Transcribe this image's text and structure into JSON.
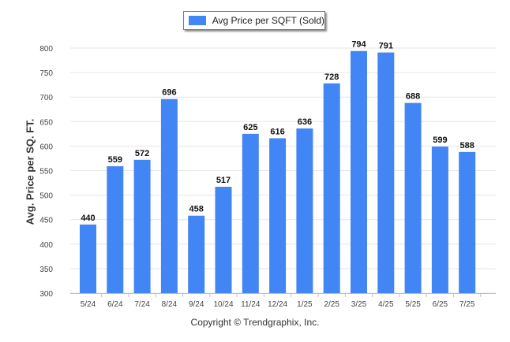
{
  "chart_data": {
    "type": "bar",
    "categories": [
      "5/24",
      "6/24",
      "7/24",
      "8/24",
      "9/24",
      "10/24",
      "11/24",
      "12/24",
      "1/25",
      "2/25",
      "3/25",
      "4/25",
      "5/25",
      "6/25",
      "7/25"
    ],
    "series": [
      {
        "name": "Avg Price per SQFT (Sold)",
        "values": [
          440,
          559,
          572,
          696,
          458,
          517,
          625,
          616,
          636,
          728,
          794,
          791,
          688,
          599,
          588
        ]
      }
    ],
    "data_labels": [
      "440",
      "559",
      "572",
      "696",
      "458",
      "517",
      "625",
      "616",
      "636",
      "728",
      "794",
      "791",
      "688",
      "599",
      "588"
    ],
    "title": "",
    "xlabel": "",
    "ylabel": "Avg. Price per SQ. FT.",
    "ylim": [
      300,
      800
    ],
    "yticks": [
      "300",
      "350",
      "400",
      "450",
      "500",
      "550",
      "600",
      "650",
      "700",
      "750",
      "800"
    ],
    "grid": true,
    "legend_position": "top-center",
    "bar_color": "#4285f4"
  },
  "footer": {
    "copyright": "Copyright © Trendgraphix, Inc."
  }
}
